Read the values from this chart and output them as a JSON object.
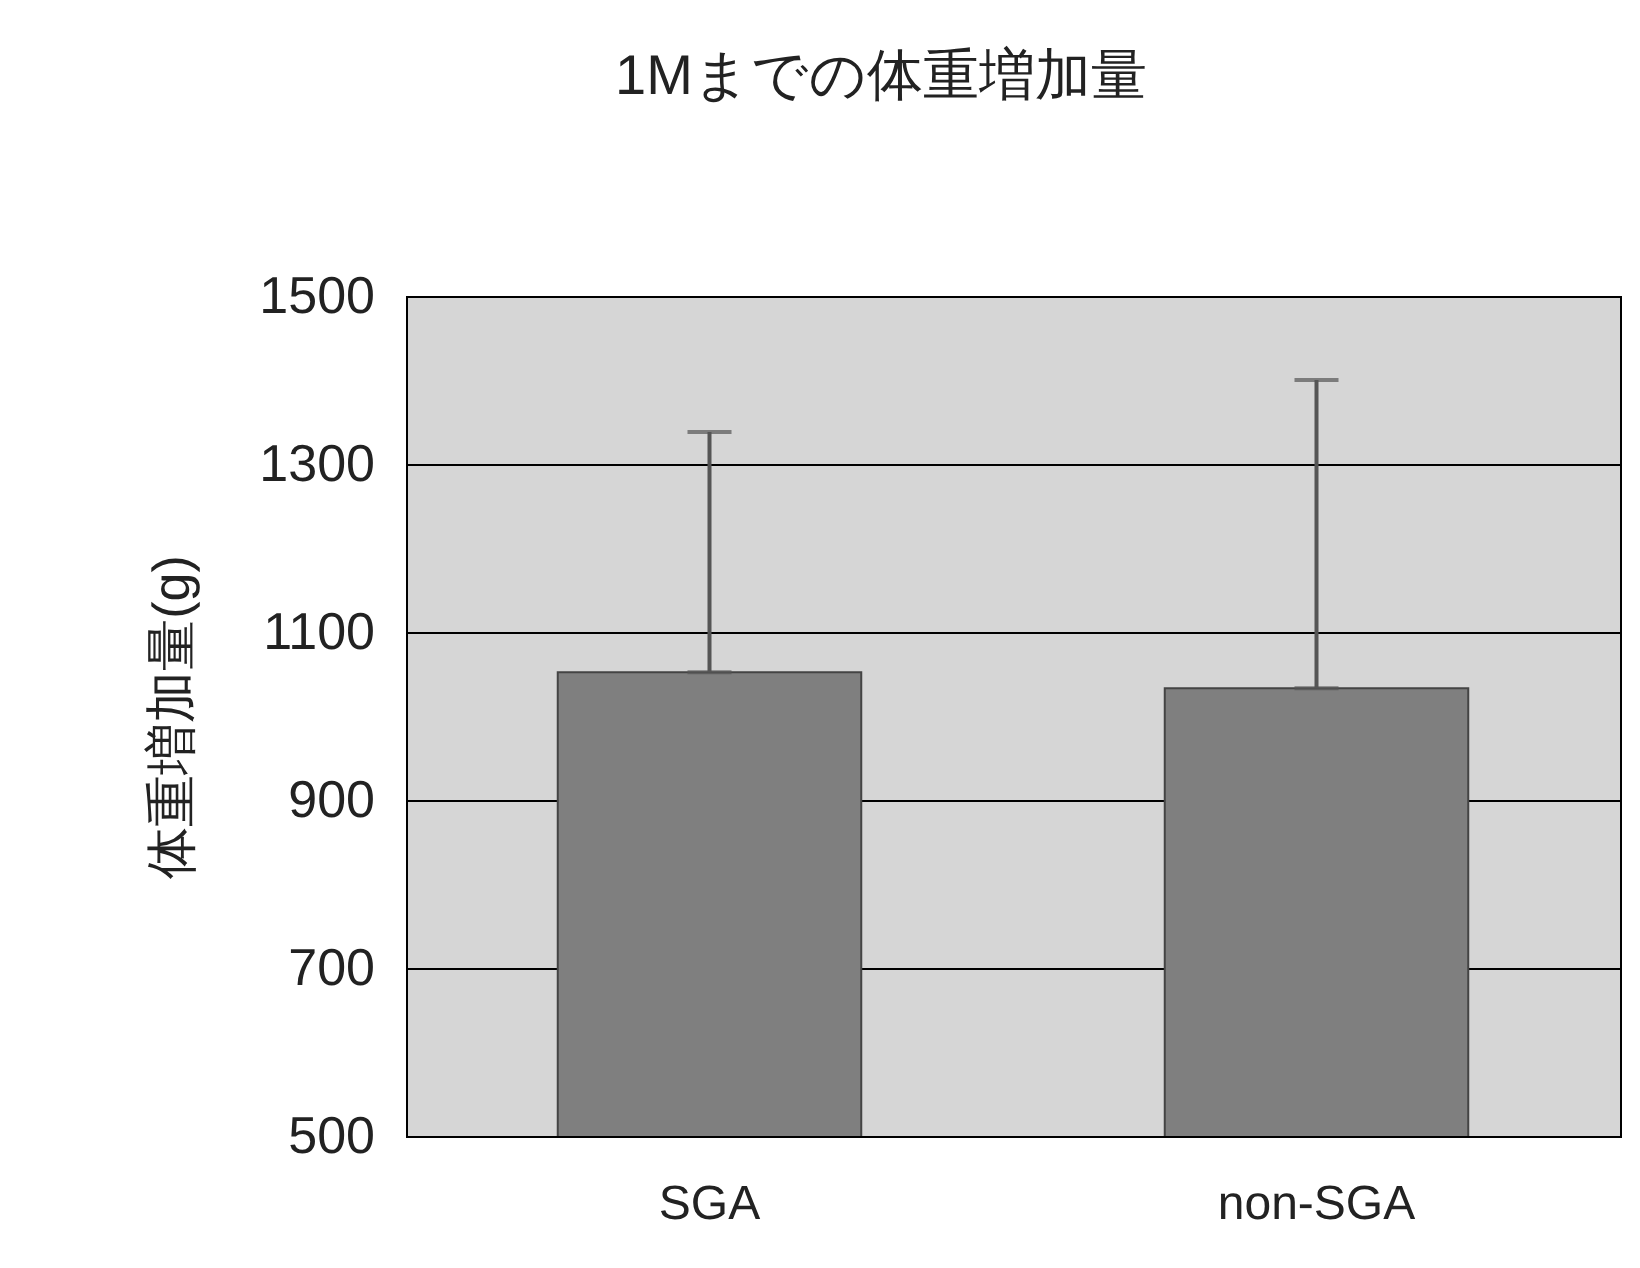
{
  "chart_data": {
    "type": "bar",
    "title": "1Mまでの体重増加量",
    "ylabel": "体重増加量(g)",
    "categories": [
      "SGA",
      "non-SGA"
    ],
    "values": [
      1052,
      1033
    ],
    "errors": [
      [
        1052,
        1338
      ],
      [
        1033,
        1400
      ]
    ],
    "color": "#7f7f7f",
    "ylim": [
      500,
      1500
    ],
    "yticks": [
      500,
      700,
      900,
      1100,
      1300,
      1500
    ],
    "grid": true
  }
}
